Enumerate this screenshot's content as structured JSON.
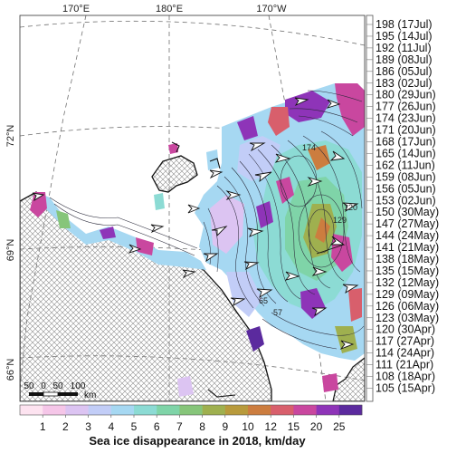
{
  "map": {
    "longitude_labels": [
      "170°E",
      "180°E",
      "170°W"
    ],
    "latitude_labels": [
      "72°N",
      "69°N",
      "66°N"
    ],
    "scale_bar": {
      "ticks": [
        "50",
        "0",
        "50",
        "100"
      ],
      "unit": "km"
    }
  },
  "day_legend": {
    "labels": [
      "198 (17Jul)",
      "195 (14Jul)",
      "192 (11Jul)",
      "189 (08Jul)",
      "186 (05Jul)",
      "183 (02Jul)",
      "180 (29Jun)",
      "177 (26Jun)",
      "174 (23Jun)",
      "171 (20Jun)",
      "168 (17Jun)",
      "165 (14Jun)",
      "162 (11Jun)",
      "159 (08Jun)",
      "156 (05Jun)",
      "153 (02Jun)",
      "150 (30May)",
      "147 (27May)",
      "144 (24May)",
      "141 (21May)",
      "138 (18May)",
      "135 (15May)",
      "132 (12May)",
      "129 (09May)",
      "126 (06May)",
      "123 (03May)",
      "120 (30Apr)",
      "117 (27Apr)",
      "114 (24Apr)",
      "111 (21Apr)",
      "108 (18Apr)",
      "105 (15Apr)"
    ]
  },
  "color_legend": {
    "caption": "Sea ice disappearance in 2018, km/day",
    "labels": [
      "1",
      "2",
      "3",
      "4",
      "5",
      "6",
      "7",
      "8",
      "9",
      "10",
      "12",
      "15",
      "20",
      "25"
    ],
    "colors": [
      "#fde3f0",
      "#f5c6e8",
      "#dcc4f2",
      "#c2cdf7",
      "#a6d8f2",
      "#8cdbd4",
      "#7fd4a8",
      "#86c57a",
      "#9fb04f",
      "#b89a3c",
      "#cc7d3f",
      "#d85f6c",
      "#c9479f",
      "#8e34b8",
      "#5b2a9e"
    ]
  },
  "contour_labels": [
    "174",
    "129",
    "120",
    "65",
    "57"
  ]
}
